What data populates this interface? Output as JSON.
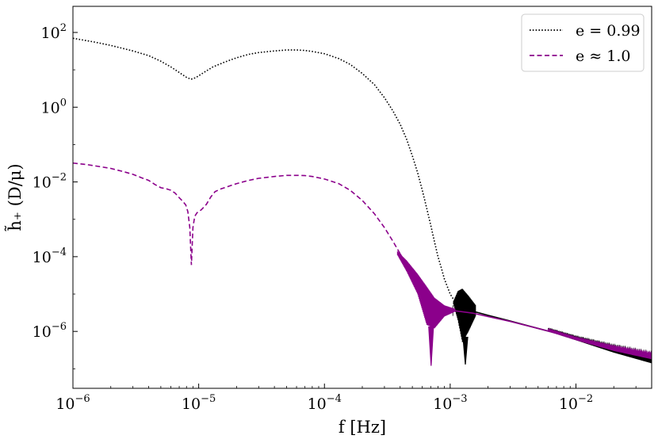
{
  "chart_data": {
    "type": "line",
    "title": "",
    "xlabel": "f [Hz]",
    "ylabel": "h̃₊ (D/μ)",
    "xscale": "log",
    "yscale": "log",
    "xlim": [
      1e-06,
      0.04
    ],
    "ylim": [
      3e-08,
      500
    ],
    "grid": false,
    "legend_position": "top-right",
    "x_ticks": [
      {
        "value": 1e-06,
        "base": "10",
        "exp": "−6"
      },
      {
        "value": 1e-05,
        "base": "10",
        "exp": "−5"
      },
      {
        "value": 0.0001,
        "base": "10",
        "exp": "−4"
      },
      {
        "value": 0.001,
        "base": "10",
        "exp": "−3"
      },
      {
        "value": 0.01,
        "base": "10",
        "exp": "−2"
      }
    ],
    "y_ticks": [
      {
        "value": 100.0,
        "base": "10",
        "exp": "2"
      },
      {
        "value": 1.0,
        "base": "10",
        "exp": "0"
      },
      {
        "value": 0.01,
        "base": "10",
        "exp": "−2"
      },
      {
        "value": 0.0001,
        "base": "10",
        "exp": "−4"
      },
      {
        "value": 1e-06,
        "base": "10",
        "exp": "−6"
      }
    ],
    "series": [
      {
        "name": "e = 0.99",
        "color": "#000000",
        "dash": "dotted",
        "points": [
          [
            1e-06,
            70
          ],
          [
            1.5e-06,
            55
          ],
          [
            2e-06,
            45
          ],
          [
            3e-06,
            32
          ],
          [
            4e-06,
            24
          ],
          [
            5e-06,
            17
          ],
          [
            6e-06,
            12
          ],
          [
            7e-06,
            8.5
          ],
          [
            8e-06,
            6.3
          ],
          [
            8.7e-06,
            5.6
          ],
          [
            9.5e-06,
            6.2
          ],
          [
            1.1e-05,
            8.5
          ],
          [
            1.3e-05,
            12
          ],
          [
            1.6e-05,
            16
          ],
          [
            2e-05,
            21
          ],
          [
            2.5e-05,
            26
          ],
          [
            3e-05,
            29
          ],
          [
            4e-05,
            32
          ],
          [
            5e-05,
            34
          ],
          [
            6e-05,
            34
          ],
          [
            7e-05,
            33
          ],
          [
            8e-05,
            31
          ],
          [
            0.0001,
            27
          ],
          [
            0.00013,
            20
          ],
          [
            0.00016,
            14
          ],
          [
            0.0002,
            8
          ],
          [
            0.00025,
            4
          ],
          [
            0.0003,
            1.8
          ],
          [
            0.00035,
            0.8
          ],
          [
            0.0004,
            0.35
          ],
          [
            0.00045,
            0.14
          ],
          [
            0.0005,
            0.05
          ],
          [
            0.00055,
            0.018
          ],
          [
            0.0006,
            0.006
          ],
          [
            0.00065,
            0.002
          ],
          [
            0.0007,
            0.0007
          ],
          [
            0.00075,
            0.00025
          ],
          [
            0.0008,
            0.0001
          ],
          [
            0.00085,
            5e-05
          ],
          [
            0.0009,
            2.5e-05
          ],
          [
            0.001,
            1e-05
          ],
          [
            0.0011,
            6e-06
          ],
          [
            0.0012,
            3.5e-06
          ],
          [
            0.0013,
            2.5e-06
          ]
        ],
        "tail_points": [
          [
            0.0015,
            3.5e-06
          ],
          [
            0.002,
            2.7e-06
          ],
          [
            0.003,
            1.9e-06
          ],
          [
            0.005,
            1.2e-06
          ],
          [
            0.01,
            6.5e-07
          ],
          [
            0.02,
            3.6e-07
          ],
          [
            0.04,
            2.1e-07
          ]
        ],
        "notch": {
          "x": 0.00132,
          "min": 1.3e-07
        },
        "oscillation": {
          "x": [
            0.00105,
            0.00115,
            0.00125,
            0.0014,
            0.0016
          ],
          "upper": [
            6e-06,
            1.2e-05,
            1.4e-05,
            9e-06,
            5e-06
          ],
          "lower": [
            6e-06,
            2e-06,
            5e-07,
            1e-06,
            2.6e-06
          ]
        },
        "tail_spread": {
          "x": [
            0.006,
            0.01,
            0.02,
            0.04
          ],
          "upper": [
            1.3e-06,
            8e-07,
            4.8e-07,
            3.1e-07
          ],
          "lower": [
            1e-06,
            5.8e-07,
            2.7e-07,
            1.4e-07
          ]
        }
      },
      {
        "name": "e ≈ 1.0",
        "color": "#8b008b",
        "dash": "dashed",
        "points": [
          [
            1e-06,
            0.032
          ],
          [
            1.3e-06,
            0.029
          ],
          [
            1.6e-06,
            0.026
          ],
          [
            2e-06,
            0.023
          ],
          [
            2.5e-06,
            0.019
          ],
          [
            3e-06,
            0.016
          ],
          [
            3.5e-06,
            0.013
          ],
          [
            4e-06,
            0.011
          ],
          [
            4.5e-06,
            0.0085
          ],
          [
            5e-06,
            0.007
          ],
          [
            5.5e-06,
            0.0066
          ],
          [
            6e-06,
            0.006
          ],
          [
            6.5e-06,
            0.005
          ],
          [
            7e-06,
            0.0038
          ],
          [
            7.5e-06,
            0.003
          ],
          [
            7.9e-06,
            0.0024
          ],
          [
            8.2e-06,
            0.0016
          ],
          [
            8.5e-06,
            0.0006
          ],
          [
            8.75e-06,
            6e-05
          ],
          [
            9e-06,
            0.0006
          ],
          [
            9.3e-06,
            0.0012
          ],
          [
            9.7e-06,
            0.0015
          ],
          [
            1.05e-05,
            0.0018
          ],
          [
            1.15e-05,
            0.0025
          ],
          [
            1.25e-05,
            0.004
          ],
          [
            1.35e-05,
            0.0055
          ],
          [
            1.5e-05,
            0.0065
          ],
          [
            1.7e-05,
            0.0075
          ],
          [
            2e-05,
            0.009
          ],
          [
            2.5e-05,
            0.011
          ],
          [
            3e-05,
            0.0125
          ],
          [
            4e-05,
            0.014
          ],
          [
            5e-05,
            0.015
          ],
          [
            6e-05,
            0.015
          ],
          [
            7e-05,
            0.0148
          ],
          [
            8e-05,
            0.014
          ],
          [
            0.0001,
            0.012
          ],
          [
            0.00013,
            0.009
          ],
          [
            0.00016,
            0.006
          ],
          [
            0.0002,
            0.0032
          ],
          [
            0.00025,
            0.0014
          ],
          [
            0.0003,
            0.0006
          ],
          [
            0.00035,
            0.00026
          ],
          [
            0.0004,
            0.00012
          ]
        ],
        "tail_points": [
          [
            0.00045,
            6e-05
          ],
          [
            0.0005,
            3e-05
          ],
          [
            0.00055,
            1.6e-05
          ],
          [
            0.0006,
            1e-05
          ],
          [
            0.0007,
            5.5e-06
          ],
          [
            0.0008,
            4.5e-06
          ],
          [
            0.001,
            3.7e-06
          ],
          [
            0.0015,
            3.1e-06
          ],
          [
            0.002,
            2.5e-06
          ],
          [
            0.003,
            1.85e-06
          ],
          [
            0.005,
            1.2e-06
          ],
          [
            0.01,
            6.5e-07
          ],
          [
            0.02,
            3.7e-07
          ],
          [
            0.04,
            2.2e-07
          ]
        ],
        "notch": {
          "x": 0.000705,
          "min": 1.2e-07
        },
        "oscillation": {
          "x": [
            0.00038,
            0.00045,
            0.00055,
            0.00065,
            0.00075,
            0.0009,
            0.0011
          ],
          "upper": [
            0.00014,
            8e-05,
            3.5e-05,
            1.6e-05,
            8e-06,
            5e-06,
            4e-06
          ],
          "lower": [
            0.00011,
            4e-05,
            1e-05,
            1.5e-06,
            1.2e-06,
            2.5e-06,
            3.4e-06
          ]
        },
        "tail_spread": {
          "x": [
            0.006,
            0.01,
            0.02,
            0.04
          ],
          "upper": [
            1.25e-06,
            7.5e-07,
            4.5e-07,
            3e-07
          ],
          "lower": [
            1e-06,
            5.8e-07,
            3e-07,
            1.8e-07
          ]
        }
      }
    ]
  }
}
